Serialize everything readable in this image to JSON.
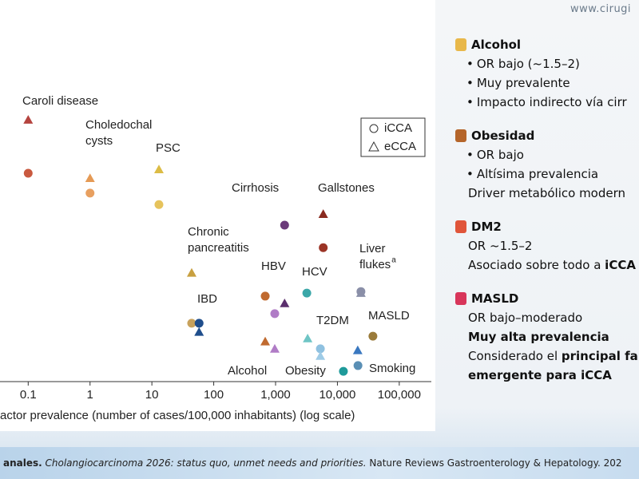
{
  "chart_data": {
    "type": "scatter",
    "xlabel": "actor prevalence (number of cases/100,000 inhabitants) (log scale)",
    "log_x": true,
    "xlim": [
      0.035,
      330000
    ],
    "xticks": [
      0.1,
      1,
      10,
      100,
      {
        "value": 1000,
        "label": "1,000"
      },
      {
        "value": 10000,
        "label": "10,000"
      },
      {
        "value": 100000,
        "label": "100,000"
      }
    ],
    "ylim": [
      0,
      100
    ],
    "legend": "upper right",
    "series": [
      {
        "name": "iCCA",
        "marker": "circle",
        "x": [
          0.1,
          1,
          13,
          1400,
          5900,
          44,
          680,
          970,
          3200,
          24000,
          58,
          37500,
          5300,
          12500,
          21500
        ],
        "values": [
          54.6,
          49.4,
          46.4,
          41.0,
          35.1,
          15.3,
          22.4,
          17.8,
          23.2,
          23.6,
          15.3,
          11.9,
          8.6,
          2.7,
          4.2
        ],
        "colors": [
          "#c9593f",
          "#e8a060",
          "#e6c35c",
          "#6b3a7a",
          "#9b3426",
          "#c8a25c",
          "#c06a2f",
          "#b07cc6",
          "#3ba7a8",
          "#8a8fa8",
          "#1f4e8c",
          "#9a7b3a",
          "#8fc1e0",
          "#1e9a9a",
          "#5a8fb5"
        ]
      },
      {
        "name": "eCCA",
        "marker": "triangle",
        "x": [
          0.1,
          1,
          13,
          1400,
          5900,
          44,
          680,
          970,
          3300,
          24000,
          58,
          21300,
          5300
        ],
        "values": [
          68.6,
          53.3,
          55.6,
          20.5,
          43.9,
          28.5,
          10.5,
          8.6,
          11.3,
          23.2,
          13.0,
          8.2,
          6.7
        ],
        "colors": [
          "#b5443f",
          "#e59a55",
          "#dcbc45",
          "#5b2f6d",
          "#8a2a1f",
          "#c8a040",
          "#c06a2f",
          "#b07cc6",
          "#6fc5c5",
          "#8a8fa8",
          "#1f4e8c",
          "#3a78c0",
          "#9ecbe6"
        ]
      }
    ],
    "annotations": [
      {
        "lines": [
          "Caroli disease"
        ]
      },
      {
        "lines": [
          "Choledochal",
          "cysts"
        ]
      },
      {
        "lines": [
          "PSC"
        ]
      },
      {
        "lines": [
          "Cirrhosis"
        ]
      },
      {
        "lines": [
          "Gallstones"
        ]
      },
      {
        "lines": [
          "Chronic",
          "pancreatitis"
        ]
      },
      {
        "lines": [
          "HBV"
        ]
      },
      {
        "lines": [
          "HCV"
        ]
      },
      {
        "lines": [
          "Liver",
          "flukes"
        ],
        "superscript": "a"
      },
      {
        "lines": [
          "IBD"
        ]
      },
      {
        "lines": [
          "T2DM"
        ]
      },
      {
        "lines": [
          "MASLD"
        ]
      },
      {
        "lines": [
          "Alcohol"
        ]
      },
      {
        "lines": [
          "Obesity"
        ]
      },
      {
        "lines": [
          "Smoking"
        ]
      }
    ]
  },
  "watermark": "www.cirugi",
  "notes": [
    {
      "title": "Alcohol",
      "lines": [
        {
          "bullet": true,
          "runs": [
            {
              "text": "OR bajo (~1.5–2)"
            }
          ]
        },
        {
          "bullet": true,
          "runs": [
            {
              "text": "Muy prevalente"
            }
          ]
        },
        {
          "bullet": true,
          "runs": [
            {
              "text": "Impacto indirecto vía cirr"
            }
          ]
        }
      ]
    },
    {
      "title": "Obesidad",
      "lines": [
        {
          "bullet": true,
          "runs": [
            {
              "text": "OR bajo"
            }
          ]
        },
        {
          "bullet": true,
          "runs": [
            {
              "text": "Altísima prevalencia"
            }
          ]
        },
        {
          "bullet": false,
          "runs": [
            {
              "text": "Driver metabólico modern"
            }
          ]
        }
      ]
    },
    {
      "title": "DM2",
      "lines": [
        {
          "bullet": false,
          "runs": [
            {
              "text": "OR ~1.5–2"
            }
          ]
        },
        {
          "bullet": false,
          "runs": [
            {
              "text": "Asociado sobre todo a "
            },
            {
              "text": "iCCA",
              "bold": true
            }
          ]
        }
      ]
    },
    {
      "title": "MASLD",
      "lines": [
        {
          "bullet": false,
          "runs": [
            {
              "text": "OR bajo–moderado"
            }
          ]
        },
        {
          "bullet": false,
          "runs": [
            {
              "text": "Muy alta prevalencia",
              "bold": true
            }
          ]
        },
        {
          "bullet": false,
          "runs": [
            {
              "text": "Considerado el "
            },
            {
              "text": "principal fa",
              "bold": true
            }
          ]
        },
        {
          "bullet": false,
          "runs": [
            {
              "text": "emergente para iCCA",
              "bold": true
            }
          ]
        }
      ]
    }
  ],
  "footer": {
    "runs": [
      {
        "text": "anales.",
        "bold": true
      },
      {
        "text": " Cholangiocarcinoma 2026: status quo, unmet needs and priorities.",
        "italic": true
      },
      {
        "text": " Nature Reviews Gastroenterology & Hepatology. 202"
      }
    ]
  }
}
